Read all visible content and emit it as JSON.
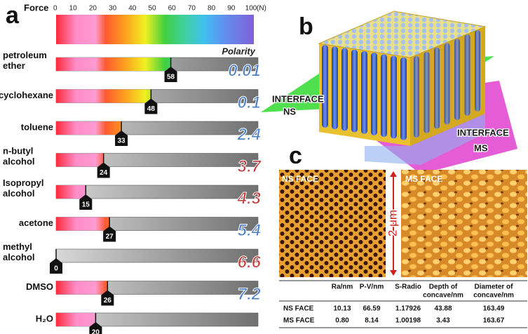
{
  "panel_a": {
    "label": "a",
    "scale_title": "Force",
    "scale_unit": "(N)",
    "scale_ticks": [
      0,
      10,
      20,
      30,
      40,
      50,
      60,
      70,
      80,
      90,
      100
    ],
    "scale_range": [
      0,
      100
    ],
    "polarity_title": "Polarity",
    "solvents": [
      {
        "name": [
          "petroleum",
          "ether"
        ],
        "force": 58,
        "polarity": 0.01,
        "polarity_color": "#4a7fc8"
      },
      {
        "name": [
          "cyclohexane"
        ],
        "force": 48,
        "polarity": 0.1,
        "polarity_color": "#4a7fc8"
      },
      {
        "name": [
          "toluene"
        ],
        "force": 33,
        "polarity": 2.4,
        "polarity_color": "#4a7fc8"
      },
      {
        "name": [
          "n-butyl",
          "alcohol"
        ],
        "force": 24,
        "polarity": 3.7,
        "polarity_color": "#c03a3a"
      },
      {
        "name": [
          "Isopropyl",
          "alcohol"
        ],
        "force": 15,
        "polarity": 4.3,
        "polarity_color": "#c03a3a"
      },
      {
        "name": [
          "acetone"
        ],
        "force": 27,
        "polarity": 5.4,
        "polarity_color": "#4a7fc8"
      },
      {
        "name": [
          "methyl",
          "alcohol"
        ],
        "force": 0,
        "polarity": 6.6,
        "polarity_color": "#c03a3a"
      },
      {
        "name": [
          "DMSO"
        ],
        "force": 26,
        "polarity": 7.2,
        "polarity_color": "#4a7fc8"
      },
      {
        "name": [
          "H₂O"
        ],
        "force": 20,
        "polarity": "",
        "polarity_color": "#4a7fc8"
      }
    ]
  },
  "panel_b": {
    "label": "b",
    "interface_ns": [
      "INTERFACE",
      "NS"
    ],
    "interface_ms": [
      "INTERFACE",
      "MS"
    ]
  },
  "panel_c": {
    "label": "c",
    "ns_face": "NS FACE",
    "ms_face": "MS FACE",
    "scale_bar": "2 μm",
    "table": {
      "columns": [
        [
          "Ra/nm"
        ],
        [
          "P-V/nm"
        ],
        [
          "S-Radio"
        ],
        [
          "Depth of",
          "concave/nm"
        ],
        [
          "Diameter of",
          "concave/nm"
        ]
      ],
      "rows": [
        {
          "name": "NS FACE",
          "cells": [
            "10.13",
            "66.59",
            "1.17926",
            "43.88",
            "163.49"
          ]
        },
        {
          "name": "MS FACE",
          "cells": [
            "0.80",
            "8.14",
            "1.00198",
            "3.43",
            "163.67"
          ]
        }
      ]
    }
  }
}
